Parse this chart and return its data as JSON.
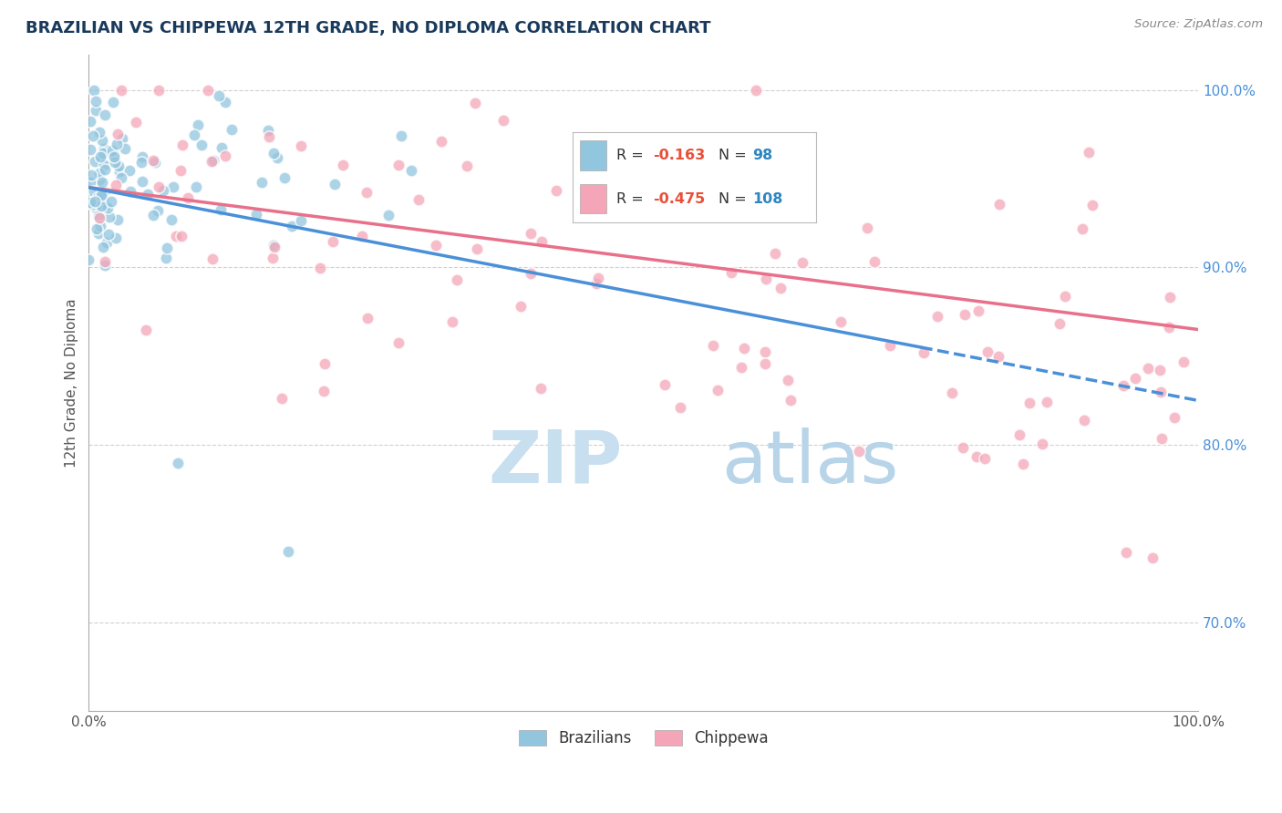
{
  "title": "BRAZILIAN VS CHIPPEWA 12TH GRADE, NO DIPLOMA CORRELATION CHART",
  "source": "Source: ZipAtlas.com",
  "ylabel": "12th Grade, No Diploma",
  "r_brazilian": -0.163,
  "n_brazilian": 98,
  "r_chippewa": -0.475,
  "n_chippewa": 108,
  "legend_labels": [
    "Brazilians",
    "Chippewa"
  ],
  "blue_color": "#92C5DE",
  "pink_color": "#F4A6B8",
  "blue_line_color": "#4A90D9",
  "pink_line_color": "#E8708A",
  "title_color": "#1A3A5C",
  "legend_r_color": "#E8503A",
  "legend_n_color": "#2E86C1",
  "background_color": "#FFFFFF",
  "watermark_zip_color": "#C8DFF0",
  "watermark_atlas_color": "#B8D4E8",
  "grid_color": "#CCCCCC",
  "ytick_color": "#4A90D9",
  "xtick_color": "#555555",
  "ylabel_color": "#555555",
  "blue_line_solid_end": 75,
  "blue_line_start_y": 94.5,
  "blue_line_end_y": 85.5,
  "blue_line_dash_end_y": 82.0,
  "pink_line_start_y": 94.5,
  "pink_line_end_y": 86.5,
  "ylim_bottom": 65,
  "ylim_top": 102,
  "xlim_left": 0,
  "xlim_right": 100
}
